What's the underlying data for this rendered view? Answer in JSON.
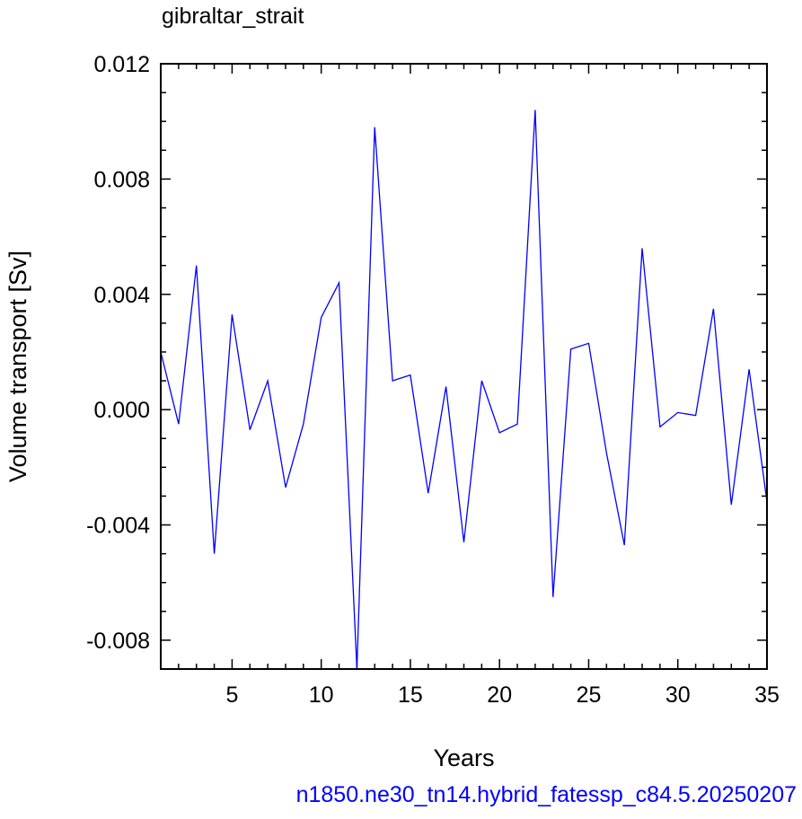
{
  "chart_data": {
    "type": "line",
    "title": "gibraltar_strait",
    "xlabel": "Years",
    "ylabel": "Volume transport [Sv]",
    "caption": "n1850.ne30_tn14.hybrid_fatessp_c84.5.20250207",
    "xlim": [
      1,
      35
    ],
    "ylim": [
      -0.009,
      0.012
    ],
    "xticks": [
      5,
      10,
      15,
      20,
      25,
      30,
      35
    ],
    "xtick_labels": [
      "5",
      "10",
      "15",
      "20",
      "25",
      "30",
      "35"
    ],
    "yticks": [
      -0.008,
      -0.004,
      0.0,
      0.004,
      0.008,
      0.012
    ],
    "ytick_labels": [
      "-0.008",
      "-0.004",
      "0.000",
      "0.004",
      "0.008",
      "0.012"
    ],
    "grid": false,
    "line_color": "#0000ff",
    "series": [
      {
        "x": [
          1,
          2,
          3,
          4,
          5,
          6,
          7,
          8,
          9,
          10,
          11,
          12,
          13,
          14,
          15,
          16,
          17,
          18,
          19,
          20,
          21,
          22,
          23,
          24,
          25,
          26,
          27,
          28,
          29,
          30,
          31,
          32,
          33,
          34,
          35
        ],
        "values": [
          0.002,
          -0.0005,
          0.005,
          -0.005,
          0.0033,
          -0.0007,
          0.001,
          -0.0027,
          -0.0005,
          0.0032,
          0.0044,
          -0.009,
          0.0098,
          0.001,
          0.0012,
          -0.0029,
          0.0008,
          -0.0046,
          0.001,
          -0.0008,
          -0.0005,
          0.0104,
          -0.0065,
          0.0021,
          0.0023,
          -0.0015,
          -0.0047,
          0.0056,
          -0.0006,
          -0.0001,
          -0.0002,
          0.0035,
          -0.0033,
          0.0014,
          -0.0032
        ]
      }
    ]
  }
}
